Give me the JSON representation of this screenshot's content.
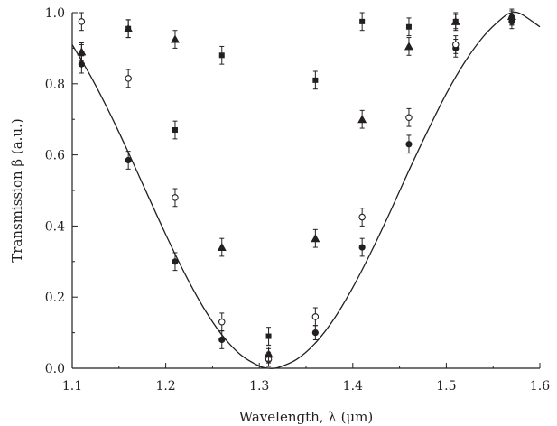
{
  "chart_data": {
    "type": "scatter",
    "title": "",
    "xlabel": "Wavelength, λ (μm)",
    "ylabel": "Transmission β (a.u.)",
    "xlim": [
      1.1,
      1.6
    ],
    "ylim": [
      0.0,
      1.0
    ],
    "x_ticks": [
      1.1,
      1.2,
      1.3,
      1.4,
      1.5,
      1.6
    ],
    "x_tick_labels": [
      "1.1",
      "1.2",
      "1.3",
      "1.4",
      "1.5",
      "1.6"
    ],
    "y_ticks": [
      0.0,
      0.2,
      0.4,
      0.6,
      0.8,
      1.0
    ],
    "y_tick_labels": [
      "0.0",
      "0.2",
      "0.4",
      "0.6",
      "0.8",
      "1.0"
    ],
    "grid": false,
    "legend": "none",
    "color": "#231f20",
    "series": [
      {
        "marker": "filled-circle",
        "x": [
          1.11,
          1.16,
          1.21,
          1.26,
          1.31,
          1.36,
          1.41,
          1.46,
          1.51,
          1.57
        ],
        "y": [
          0.855,
          0.585,
          0.3,
          0.08,
          0.035,
          0.1,
          0.34,
          0.63,
          0.9,
          0.975
        ],
        "err": [
          0.025,
          0.025,
          0.025,
          0.025,
          0.02,
          0.02,
          0.025,
          0.025,
          0.025,
          0.02
        ]
      },
      {
        "marker": "open-circle",
        "x": [
          1.11,
          1.16,
          1.21,
          1.26,
          1.31,
          1.36,
          1.41,
          1.46,
          1.51,
          1.57
        ],
        "y": [
          0.975,
          0.815,
          0.48,
          0.13,
          0.025,
          0.145,
          0.425,
          0.705,
          0.91,
          0.985
        ],
        "err": [
          0.025,
          0.025,
          0.025,
          0.025,
          0.02,
          0.025,
          0.025,
          0.025,
          0.025,
          0.02
        ]
      },
      {
        "marker": "filled-square",
        "x": [
          1.11,
          1.16,
          1.21,
          1.26,
          1.31,
          1.36,
          1.41,
          1.46,
          1.51,
          1.57
        ],
        "y": [
          0.885,
          0.955,
          0.67,
          0.88,
          0.09,
          0.81,
          0.975,
          0.96,
          0.975,
          0.985
        ],
        "err": [
          0.025,
          0.025,
          0.025,
          0.025,
          0.025,
          0.025,
          0.025,
          0.025,
          0.02,
          0.02
        ]
      },
      {
        "marker": "filled-triangle",
        "x": [
          1.11,
          1.16,
          1.21,
          1.26,
          1.31,
          1.36,
          1.41,
          1.46,
          1.51,
          1.57
        ],
        "y": [
          0.89,
          0.955,
          0.925,
          0.34,
          0.04,
          0.365,
          0.7,
          0.905,
          0.975,
          0.99
        ],
        "err": [
          0.025,
          0.025,
          0.025,
          0.025,
          0.02,
          0.025,
          0.025,
          0.025,
          0.025,
          0.02
        ]
      }
    ],
    "fit_curve": {
      "x": [
        1.1,
        1.12,
        1.14,
        1.16,
        1.18,
        1.2,
        1.22,
        1.24,
        1.26,
        1.28,
        1.3,
        1.31,
        1.32,
        1.34,
        1.36,
        1.38,
        1.4,
        1.42,
        1.44,
        1.46,
        1.48,
        1.5,
        1.52,
        1.54,
        1.56,
        1.57,
        1.58,
        1.6
      ],
      "y": [
        0.91,
        0.82,
        0.718,
        0.607,
        0.491,
        0.376,
        0.268,
        0.172,
        0.094,
        0.038,
        0.006,
        0.0,
        0.002,
        0.025,
        0.071,
        0.139,
        0.227,
        0.329,
        0.44,
        0.556,
        0.667,
        0.772,
        0.862,
        0.934,
        0.985,
        1.0,
        0.996,
        0.96
      ]
    }
  }
}
